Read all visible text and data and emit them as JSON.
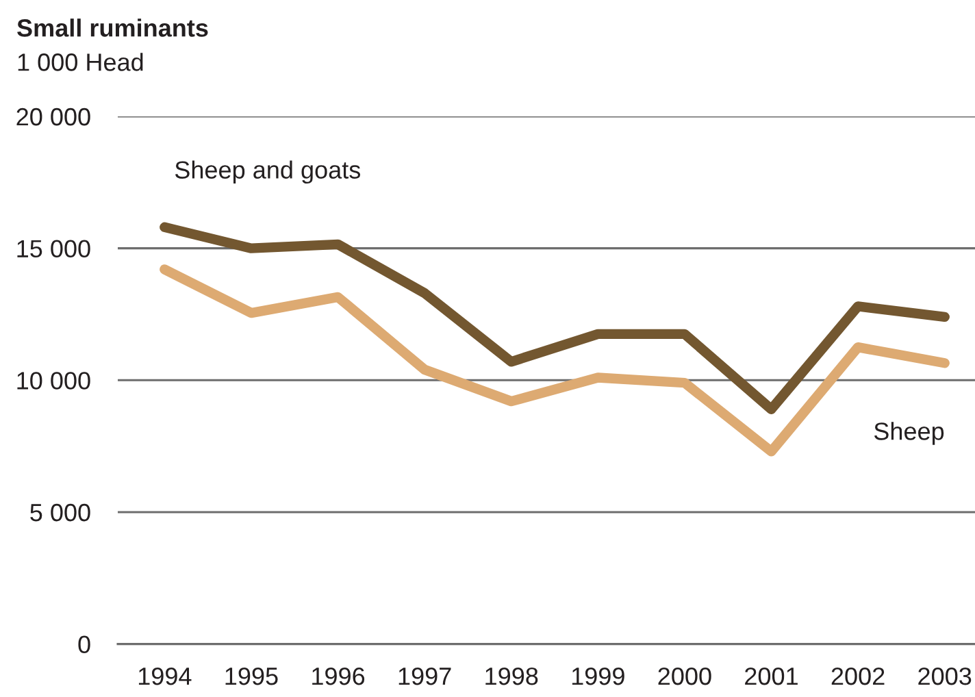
{
  "chart_data": {
    "type": "line",
    "title": "Small ruminants",
    "ylabel": "1 000 Head",
    "categories": [
      "1994",
      "1995",
      "1996",
      "1997",
      "1998",
      "1999",
      "2000",
      "2001",
      "2002",
      "2003"
    ],
    "series": [
      {
        "name": "Sheep and goats",
        "color": "#735730",
        "values": [
          15800,
          15000,
          15150,
          13300,
          10700,
          11750,
          11750,
          8900,
          12800,
          12400
        ]
      },
      {
        "name": "Sheep",
        "color": "#ddaa72",
        "values": [
          14200,
          12550,
          13150,
          10400,
          9200,
          10100,
          9900,
          7300,
          11250,
          10650
        ]
      }
    ],
    "ylim": [
      0,
      20000
    ],
    "yticks": [
      0,
      {
        "value": 5000,
        "label": "5 000"
      },
      {
        "value": 10000,
        "label": "10 000"
      },
      {
        "value": 15000,
        "label": "15 000"
      },
      {
        "value": 20000,
        "label": "20 000"
      }
    ],
    "grid": "y",
    "line_style": "solid"
  }
}
